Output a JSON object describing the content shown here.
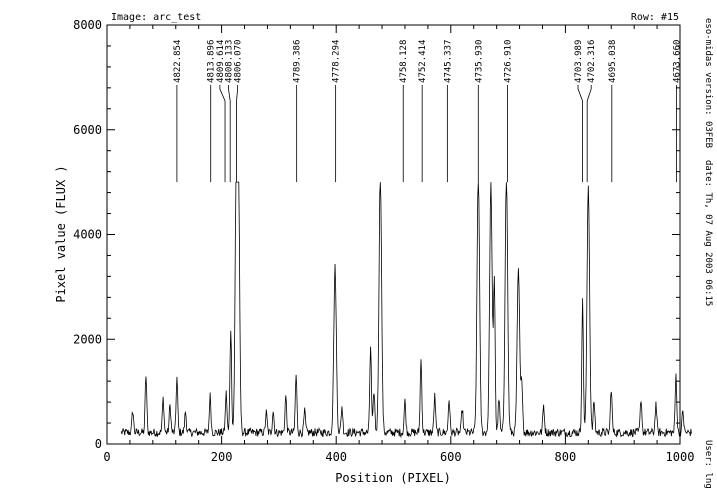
{
  "header": {
    "image_label": "Image:  arc_test",
    "row_label": "Row:  #15"
  },
  "side_info": {
    "version": "eso-midas version: 03FEB",
    "date": "date: Th, 07 Aug 2003 06:15",
    "user": "User: lng"
  },
  "chart_data": {
    "type": "line",
    "title": "",
    "xlabel": "Position (PIXEL)",
    "ylabel": "Pixel value (FLUX )",
    "xlim": [
      0,
      1000
    ],
    "ylim": [
      0,
      8000
    ],
    "x_ticks": [
      0,
      200,
      400,
      600,
      800,
      1000
    ],
    "y_ticks": [
      0,
      2000,
      4000,
      6000,
      8000
    ],
    "grid": false,
    "x_range": [
      25,
      1020
    ],
    "baseline": 220,
    "noise": 80,
    "peaks": [
      {
        "x": 45,
        "y": 420
      },
      {
        "x": 68,
        "y": 1100
      },
      {
        "x": 98,
        "y": 650
      },
      {
        "x": 110,
        "y": 520
      },
      {
        "x": 122,
        "y": 1050
      },
      {
        "x": 137,
        "y": 400
      },
      {
        "x": 180,
        "y": 700
      },
      {
        "x": 208,
        "y": 750
      },
      {
        "x": 216,
        "y": 2000
      },
      {
        "x": 226,
        "y": 5000
      },
      {
        "x": 229,
        "y": 5000
      },
      {
        "x": 278,
        "y": 380
      },
      {
        "x": 290,
        "y": 420
      },
      {
        "x": 312,
        "y": 700
      },
      {
        "x": 330,
        "y": 1100
      },
      {
        "x": 345,
        "y": 400
      },
      {
        "x": 398,
        "y": 3150
      },
      {
        "x": 410,
        "y": 500
      },
      {
        "x": 460,
        "y": 1650
      },
      {
        "x": 466,
        "y": 800
      },
      {
        "x": 477,
        "y": 5000
      },
      {
        "x": 520,
        "y": 600
      },
      {
        "x": 548,
        "y": 1400
      },
      {
        "x": 572,
        "y": 700
      },
      {
        "x": 597,
        "y": 650
      },
      {
        "x": 620,
        "y": 450
      },
      {
        "x": 648,
        "y": 5000
      },
      {
        "x": 670,
        "y": 4750
      },
      {
        "x": 676,
        "y": 2900
      },
      {
        "x": 684,
        "y": 650
      },
      {
        "x": 697,
        "y": 5000
      },
      {
        "x": 718,
        "y": 3100
      },
      {
        "x": 724,
        "y": 1000
      },
      {
        "x": 762,
        "y": 520
      },
      {
        "x": 830,
        "y": 2500
      },
      {
        "x": 840,
        "y": 4750
      },
      {
        "x": 850,
        "y": 600
      },
      {
        "x": 880,
        "y": 850
      },
      {
        "x": 932,
        "y": 650
      },
      {
        "x": 958,
        "y": 550
      },
      {
        "x": 993,
        "y": 1100
      },
      {
        "x": 1005,
        "y": 420
      }
    ],
    "line_ids": [
      {
        "label": "4822.854",
        "x": 122,
        "x_label": 122
      },
      {
        "label": "4813.896",
        "x": 181,
        "x_label": 181
      },
      {
        "label": "4809.614",
        "x": 206,
        "x_label": 197
      },
      {
        "label": "4808.133",
        "x": 215,
        "x_label": 212
      },
      {
        "label": "4806.070",
        "x": 226,
        "x_label": 228
      },
      {
        "label": "4789.386",
        "x": 331,
        "x_label": 331
      },
      {
        "label": "4778.294",
        "x": 399,
        "x_label": 399
      },
      {
        "label": "4758.128",
        "x": 517,
        "x_label": 517
      },
      {
        "label": "4752.414",
        "x": 550,
        "x_label": 550
      },
      {
        "label": "4745.337",
        "x": 594,
        "x_label": 594
      },
      {
        "label": "4735.930",
        "x": 648,
        "x_label": 648
      },
      {
        "label": "4726.910",
        "x": 699,
        "x_label": 699
      },
      {
        "label": "4703.989",
        "x": 830,
        "x_label": 822
      },
      {
        "label": "4702.316",
        "x": 838,
        "x_label": 845
      },
      {
        "label": "4695.038",
        "x": 881,
        "x_label": 881
      },
      {
        "label": "4673.660",
        "x": 994,
        "x_label": 994
      }
    ],
    "line_id_bottom": 5000,
    "line_id_top": 6550
  }
}
